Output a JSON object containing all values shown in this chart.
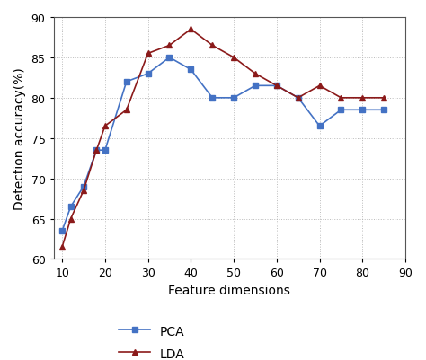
{
  "pca_x": [
    10,
    12,
    15,
    18,
    20,
    25,
    30,
    35,
    40,
    45,
    50,
    55,
    60,
    65,
    70,
    75,
    80,
    85
  ],
  "pca_y": [
    63.5,
    66.5,
    69,
    73.5,
    73.5,
    82,
    83,
    85,
    83.5,
    80,
    80,
    81.5,
    81.5,
    80,
    76.5,
    78.5,
    78.5,
    78.5
  ],
  "lda_x": [
    10,
    12,
    15,
    18,
    20,
    25,
    30,
    35,
    40,
    45,
    50,
    55,
    60,
    65,
    70,
    75,
    80,
    85
  ],
  "lda_y": [
    61.5,
    65,
    68.5,
    73.5,
    76.5,
    78.5,
    85.5,
    86.5,
    88.5,
    86.5,
    85,
    83,
    81.5,
    80,
    81.5,
    80,
    80,
    80
  ],
  "pca_color": "#4472c4",
  "lda_color": "#8b1a1a",
  "xlabel": "Feature dimensions",
  "ylabel": "Detection accuracy(%)",
  "xlim": [
    8,
    90
  ],
  "ylim": [
    60,
    90
  ],
  "xticks": [
    10,
    20,
    30,
    40,
    50,
    60,
    70,
    80,
    90
  ],
  "yticks": [
    60,
    65,
    70,
    75,
    80,
    85,
    90
  ],
  "grid_color": "#aaaaaa",
  "bg_color": "#ffffff",
  "legend_labels": [
    "PCA",
    "LDA"
  ]
}
